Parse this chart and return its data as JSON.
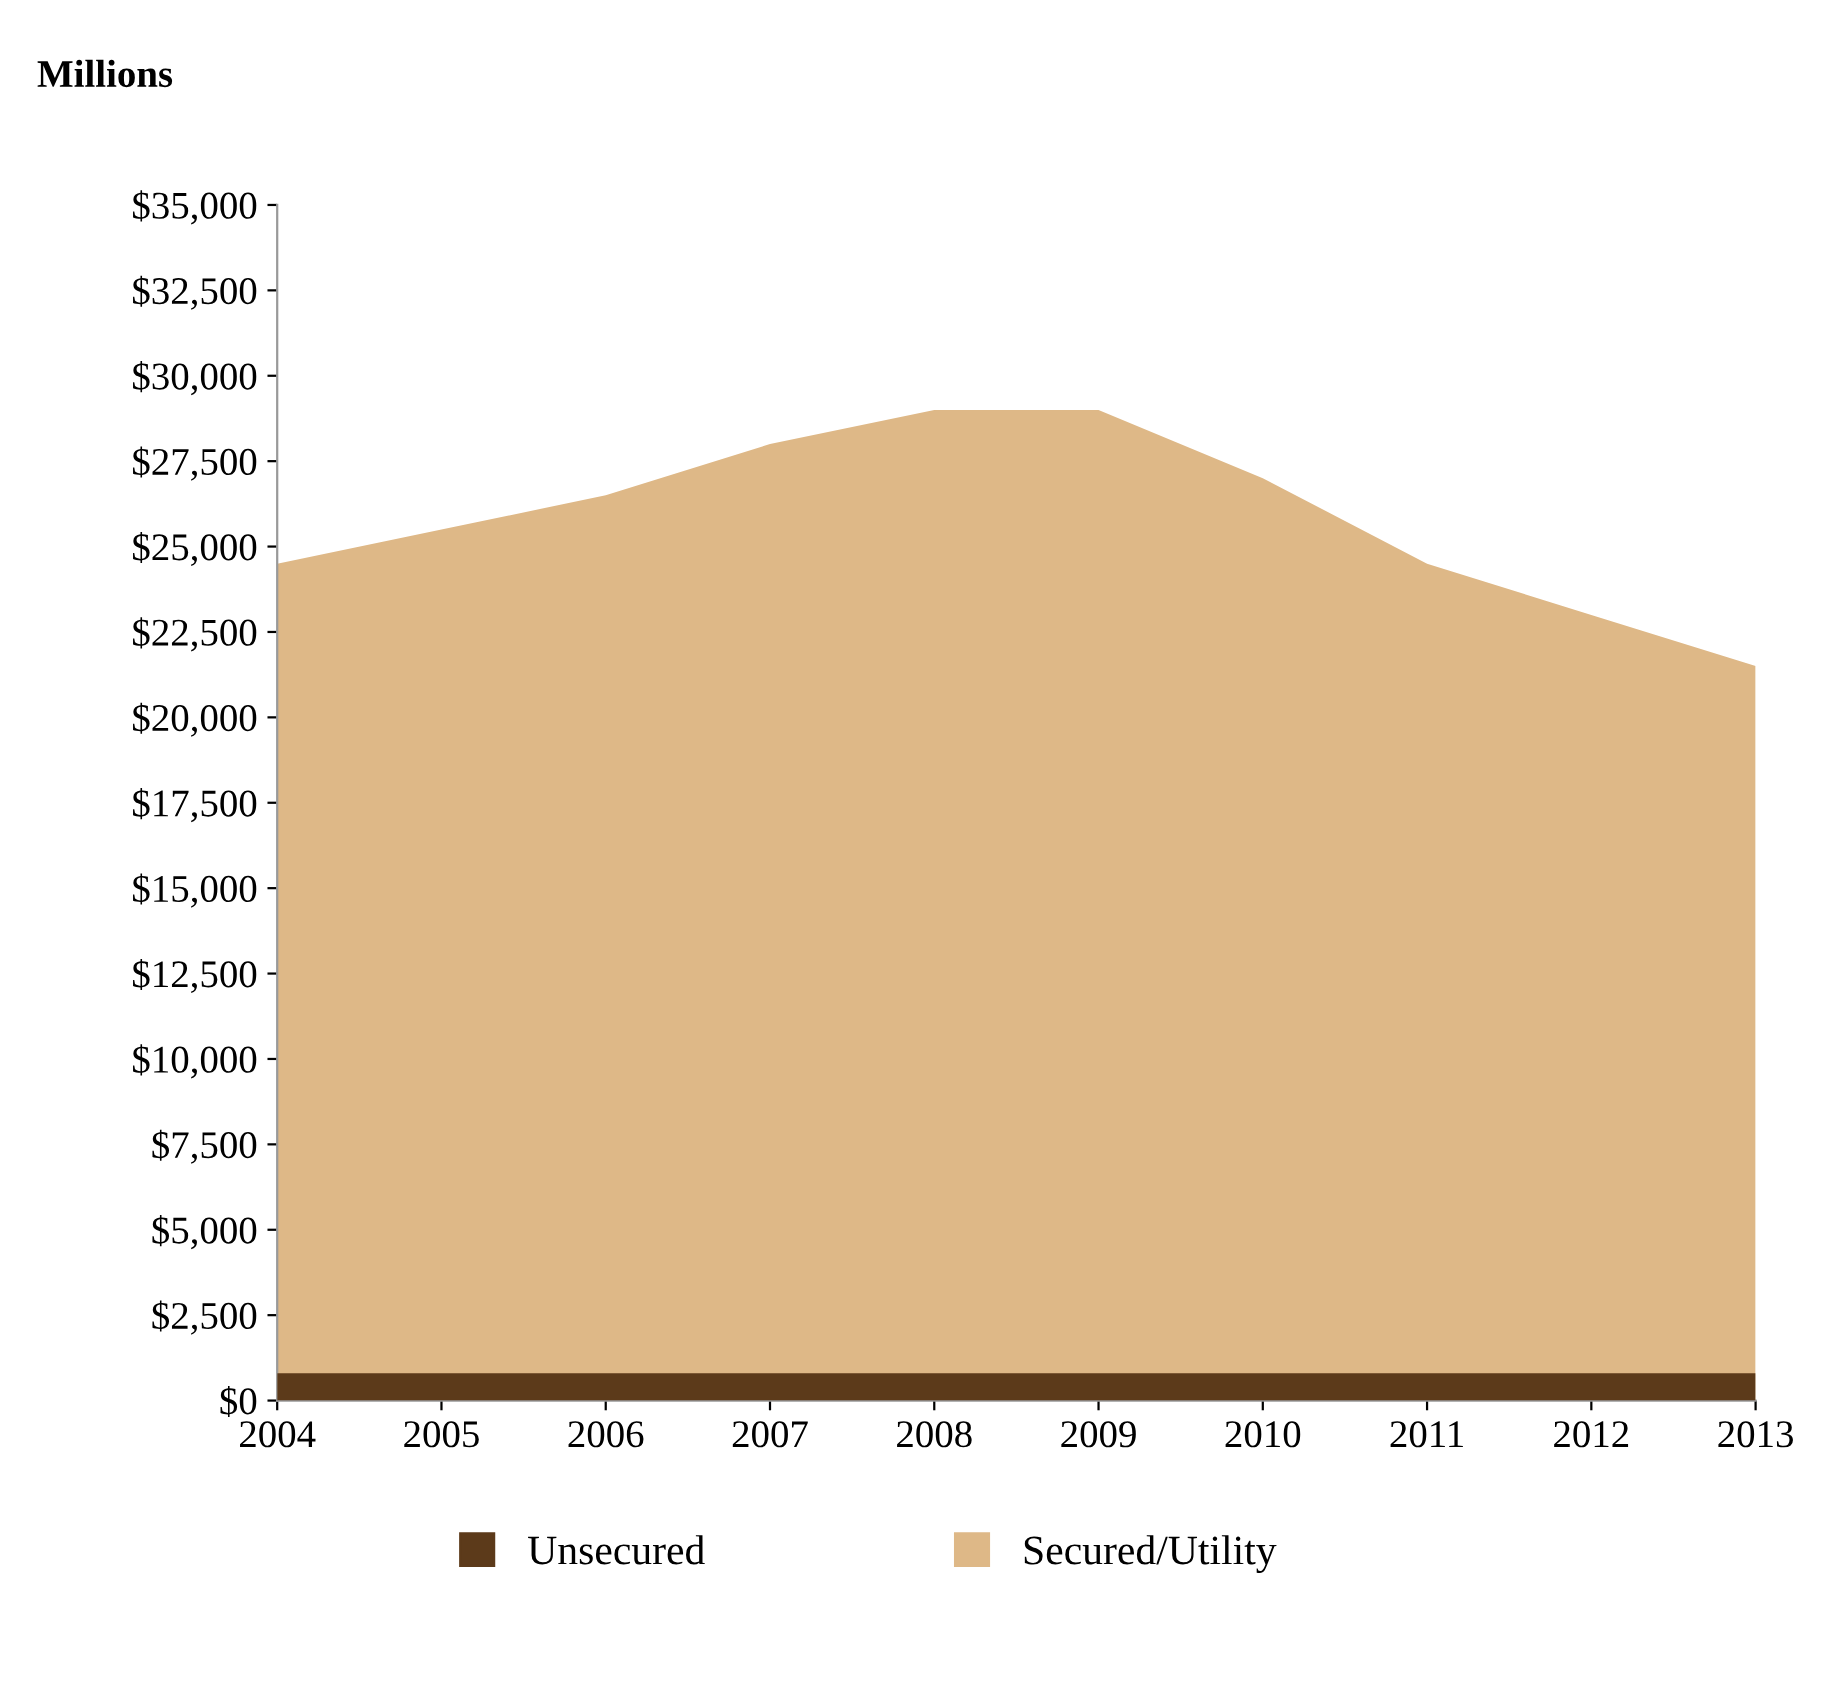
{
  "chart_data": {
    "type": "area",
    "ylabel": "Millions",
    "categories": [
      "2004",
      "2005",
      "2006",
      "2007",
      "2008",
      "2009",
      "2010",
      "2011",
      "2012",
      "2013"
    ],
    "series": [
      {
        "name": "Unsecured",
        "color": "#5c3a1a",
        "values": [
          800,
          800,
          800,
          800,
          800,
          800,
          800,
          800,
          800,
          800
        ]
      },
      {
        "name": "Secured/Utility",
        "color": "#deb887",
        "values": [
          24500,
          25500,
          26500,
          28000,
          29000,
          29000,
          27000,
          24500,
          23000,
          21500
        ]
      }
    ],
    "ylim": [
      0,
      35000
    ],
    "yticks": [
      {
        "value": 0,
        "label": "$0"
      },
      {
        "value": 2500,
        "label": "$2,500"
      },
      {
        "value": 5000,
        "label": "$5,000"
      },
      {
        "value": 7500,
        "label": "$7,500"
      },
      {
        "value": 10000,
        "label": "$10,000"
      },
      {
        "value": 12500,
        "label": "$12,500"
      },
      {
        "value": 15000,
        "label": "$15,000"
      },
      {
        "value": 17500,
        "label": "$17,500"
      },
      {
        "value": 20000,
        "label": "$20,000"
      },
      {
        "value": 22500,
        "label": "$22,500"
      },
      {
        "value": 25000,
        "label": "$25,000"
      },
      {
        "value": 27500,
        "label": "$27,500"
      },
      {
        "value": 30000,
        "label": "$30,000"
      },
      {
        "value": 32500,
        "label": "$32,500"
      },
      {
        "value": 35000,
        "label": "$35,000"
      }
    ],
    "legend": "bottom",
    "grid": false
  }
}
